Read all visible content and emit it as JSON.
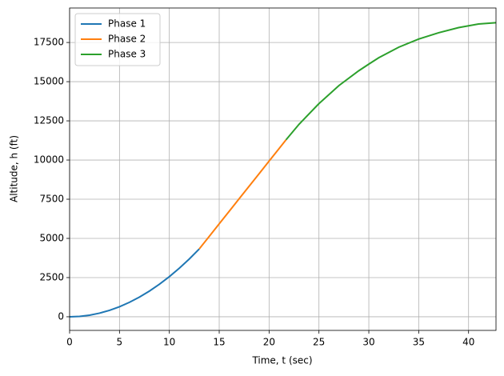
{
  "chart_data": {
    "type": "line",
    "xlabel": "Time, t (sec)",
    "ylabel": "Altitude, h (ft)",
    "xlim": [
      0,
      42.75
    ],
    "ylim": [
      -870,
      19700
    ],
    "xticks": [
      0,
      5,
      10,
      15,
      20,
      25,
      30,
      35,
      40
    ],
    "yticks": [
      0,
      2500,
      5000,
      7500,
      10000,
      12500,
      15000,
      17500
    ],
    "grid": true,
    "legend": "upper left",
    "series": [
      {
        "name": "Phase 1",
        "color": "#1f77b4",
        "x": [
          0,
          1,
          2,
          3,
          4,
          5,
          6,
          7,
          8,
          9,
          10,
          11,
          12,
          13
        ],
        "values": [
          0,
          26,
          102,
          230,
          410,
          640,
          922,
          1254,
          1638,
          2074,
          2560,
          3098,
          3686,
          4326
        ]
      },
      {
        "name": "Phase 2",
        "color": "#ff7f0e",
        "x": [
          13,
          14,
          15,
          16,
          17,
          18,
          19,
          20,
          21,
          21.7
        ],
        "values": [
          4330,
          5130,
          5930,
          6730,
          7530,
          8330,
          9130,
          9930,
          10730,
          11290
        ]
      },
      {
        "name": "Phase 3",
        "color": "#2ca02c",
        "x": [
          21.7,
          23,
          25,
          27,
          29,
          30,
          31,
          33,
          35,
          37,
          39,
          41,
          42.75
        ],
        "values": [
          11290,
          12280,
          13600,
          14750,
          15700,
          16120,
          16530,
          17200,
          17720,
          18120,
          18450,
          18680,
          18760
        ]
      }
    ]
  }
}
